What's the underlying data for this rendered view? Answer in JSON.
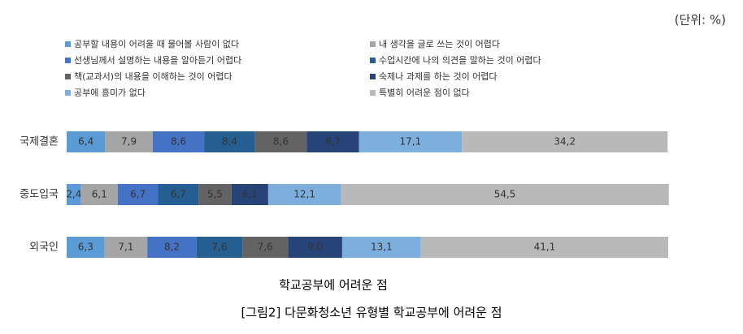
{
  "chart_data": {
    "type": "stacked_barh",
    "title": "학교공부에 어려운 점",
    "caption": "[그림2] 다문화청소년 유형별 학교공부에 어려운 점",
    "unit": "(단위:  %)",
    "categories": [
      "국제결혼",
      "중도입국",
      "외국인"
    ],
    "xlim": [
      0,
      100
    ],
    "legend": "top",
    "series": [
      {
        "name": "공부할 내용이 어려울 때 물어볼 사람이 없다",
        "color": "#5b9bd5",
        "values": [
          6.4,
          2.4,
          6.3
        ],
        "value_labels": [
          "6,4",
          "2,4",
          "6,3"
        ]
      },
      {
        "name": "내 생각을 글로 쓰는 것이 어렵다",
        "color": "#a5a5a5",
        "values": [
          7.9,
          6.1,
          7.1
        ],
        "value_labels": [
          "7,9",
          "6,1",
          "7,1"
        ]
      },
      {
        "name": "선생님께서 설명하는 내용을 알아듣기 어렵다",
        "color": "#4472c4",
        "values": [
          8.6,
          6.7,
          8.2
        ],
        "value_labels": [
          "8,6",
          "6,7",
          "8,2"
        ]
      },
      {
        "name": "수업시간에 나의 의견을 말하는 것이 어렵다",
        "color": "#255e91",
        "values": [
          8.4,
          6.7,
          7.6
        ],
        "value_labels": [
          "8,4",
          "6,7",
          "7,6"
        ]
      },
      {
        "name": "책(교과서)의 내용을 이해하는 것이 어렵다",
        "color": "#636363",
        "values": [
          8.6,
          5.5,
          7.6
        ],
        "value_labels": [
          "8,6",
          "5,5",
          "7,6"
        ]
      },
      {
        "name": "숙제나 과제를 하는 것이 어렵다",
        "color": "#264478",
        "values": [
          8.7,
          6.1,
          9.0
        ],
        "value_labels": [
          "8,7",
          "6,1",
          "9,0"
        ]
      },
      {
        "name": "공부에 흥미가 없다",
        "color": "#7cafdd",
        "values": [
          17.1,
          12.1,
          13.1
        ],
        "value_labels": [
          "17,1",
          "12,1",
          "13,1"
        ]
      },
      {
        "name": "특별히 어려운 점이 없다",
        "color": "#b9b9b9",
        "values": [
          34.2,
          54.5,
          41.1
        ],
        "value_labels": [
          "34,2",
          "54,5",
          "41,1"
        ]
      }
    ]
  }
}
